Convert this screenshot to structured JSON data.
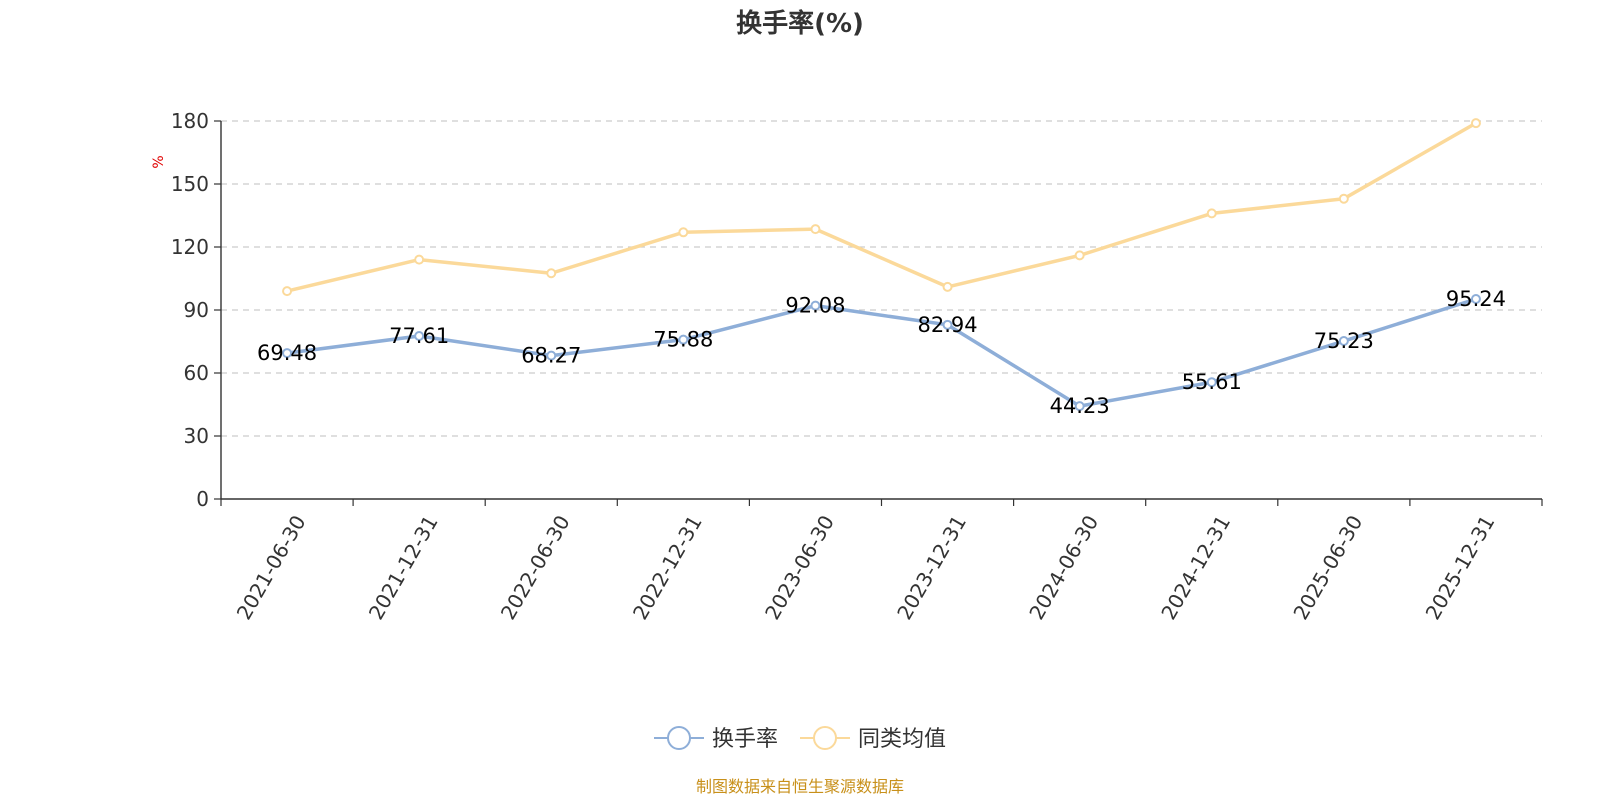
{
  "chart_data": {
    "type": "line",
    "title": "换手率(%)",
    "ylabel": "%",
    "ylim": [
      0,
      180
    ],
    "yticks": [
      0,
      30,
      60,
      90,
      120,
      150,
      180
    ],
    "categories": [
      "2021-06-30",
      "2021-12-31",
      "2022-06-30",
      "2022-12-31",
      "2023-06-30",
      "2023-12-31",
      "2024-06-30",
      "2024-12-31",
      "2025-06-30",
      "2025-12-31"
    ],
    "series": [
      {
        "name": "换手率",
        "color": "#8eaed8",
        "values": [
          69.48,
          77.61,
          68.27,
          75.88,
          92.08,
          82.94,
          44.23,
          55.61,
          75.23,
          95.24
        ],
        "labels": [
          "69.48",
          "77.61",
          "68.27",
          "75.88",
          "92.08",
          "82.94",
          "44.23",
          "55.61",
          "75.23",
          "95.24"
        ]
      },
      {
        "name": "同类均值",
        "color": "#fbd99a",
        "values": [
          99,
          114,
          107.5,
          127,
          128.5,
          101,
          116,
          136,
          143,
          179
        ]
      }
    ],
    "grid": true,
    "legend_position": "bottom-center"
  },
  "source": "制图数据来自恒生聚源数据库",
  "colors": {
    "unit_label": "#e00000",
    "source": "#c8901a",
    "axis": "#333333",
    "grid": "#cccccc"
  }
}
